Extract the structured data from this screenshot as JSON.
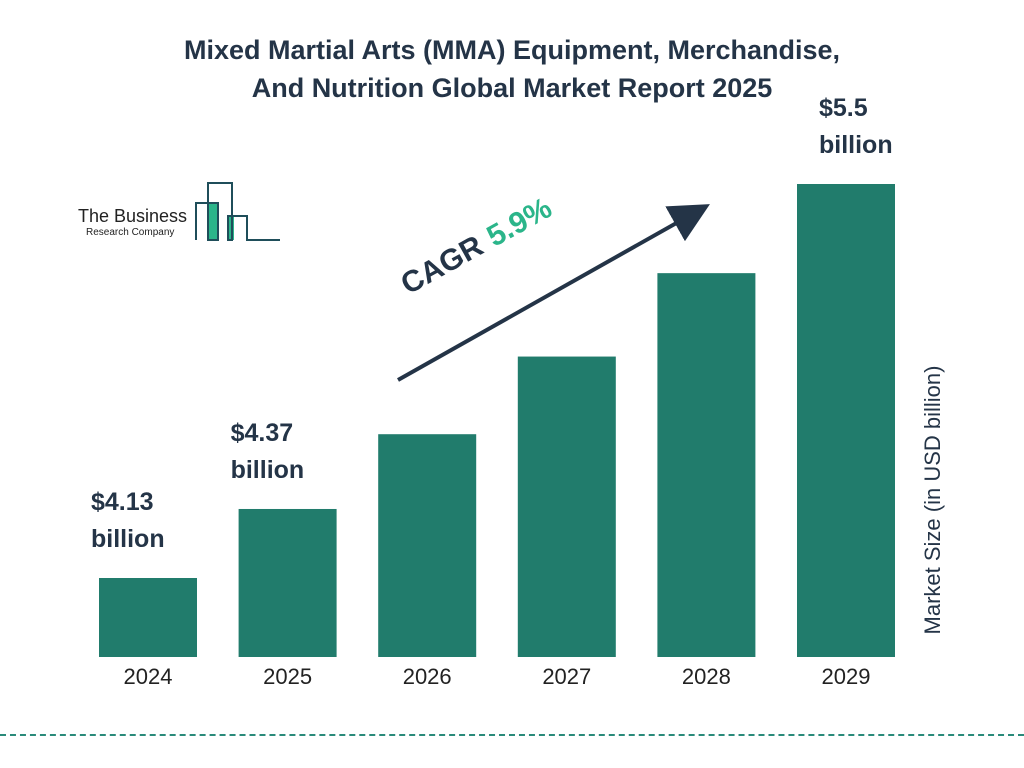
{
  "title_line1": "Mixed Martial Arts (MMA) Equipment, Merchandise,",
  "title_line2": "And Nutrition Global Market Report 2025",
  "logo": {
    "line1": "The Business",
    "line2": "Research Company"
  },
  "chart_data": {
    "type": "bar",
    "title": "Mixed Martial Arts (MMA) Equipment, Merchandise, And Nutrition Global Market Report 2025",
    "categories": [
      "2024",
      "2025",
      "2026",
      "2027",
      "2028",
      "2029"
    ],
    "values": [
      4.13,
      4.37,
      4.63,
      4.9,
      5.19,
      5.5
    ],
    "data_labels": {
      "0": [
        "$4.13",
        "billion"
      ],
      "1": [
        "$4.37",
        "billion"
      ],
      "5": [
        "$5.5",
        "billion"
      ]
    },
    "ylabel": "Market Size (in USD billion)",
    "xlabel": "",
    "grid": false,
    "bar_color": "#217c6c",
    "annotation": {
      "label": "CAGR",
      "value": "5.9%",
      "value_color": "#2bb58a"
    }
  }
}
